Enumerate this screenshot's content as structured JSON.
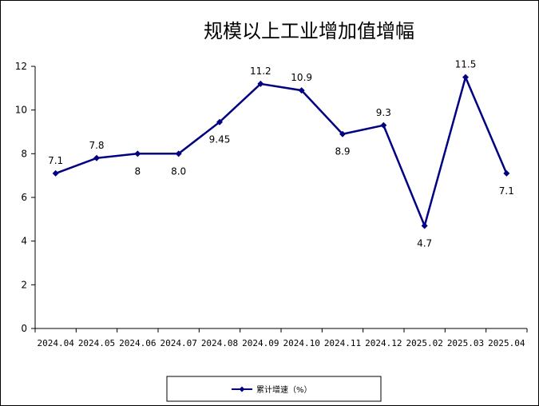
{
  "chart_data": {
    "type": "line",
    "title": "规模以上工业增加值增幅",
    "xlabel": "",
    "ylabel": "",
    "categories": [
      "2024.04",
      "2024.05",
      "2024.06",
      "2024.07",
      "2024.08",
      "2024.09",
      "2024.10",
      "2024.11",
      "2024.12",
      "2025.02",
      "2025.03",
      "2025.04"
    ],
    "series": [
      {
        "name": "累计增速（%）",
        "values": [
          7.1,
          7.8,
          8.0,
          8.0,
          9.45,
          11.2,
          10.9,
          8.9,
          9.3,
          4.7,
          11.5,
          7.1
        ],
        "data_labels": [
          "7.1",
          "7.8",
          "8",
          "8.0",
          "9.45",
          "11.2",
          "10.9",
          "8.9",
          "9.3",
          "4.7",
          "11.5",
          "7.1"
        ]
      }
    ],
    "ylim": [
      0,
      12
    ],
    "yticks": [
      0,
      2,
      4,
      6,
      8,
      10,
      12
    ],
    "grid": false,
    "legend_position": "bottom-center",
    "line_color": "#000080"
  }
}
